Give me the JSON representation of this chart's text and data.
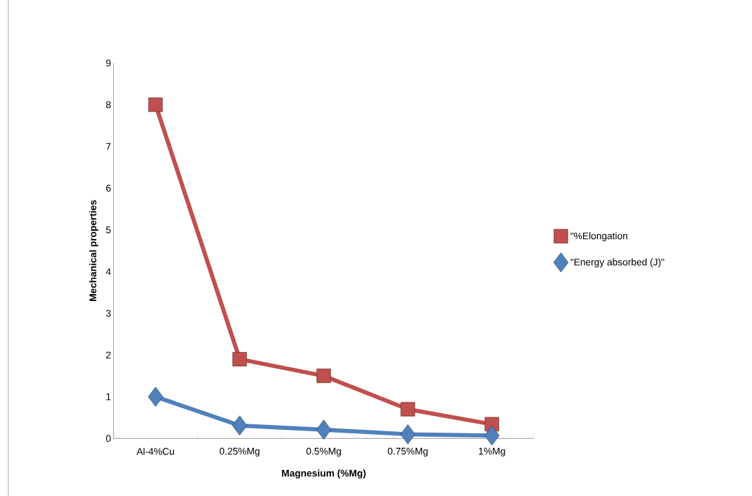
{
  "chart_data": {
    "type": "line",
    "xlabel": "Magnesium (%Mg)",
    "ylabel": "Mechanical properties",
    "categories": [
      "Al-4%Cu",
      "0.25%Mg",
      "0.5%Mg",
      "0.75%Mg",
      "1%Mg"
    ],
    "series": [
      {
        "name": "\"%Elongation",
        "color": "#c0504d",
        "marker": "square",
        "values": [
          8.0,
          1.9,
          1.5,
          0.7,
          0.34
        ]
      },
      {
        "name": "\"Energy absorbed (J)\"",
        "color": "#4f81bd",
        "marker": "diamond",
        "values": [
          1.0,
          0.31,
          0.21,
          0.1,
          0.07
        ]
      }
    ],
    "ylim": [
      0,
      9
    ],
    "yticks": [
      0,
      1,
      2,
      3,
      4,
      5,
      6,
      7,
      8,
      9
    ],
    "grid": false,
    "legend": "right"
  }
}
